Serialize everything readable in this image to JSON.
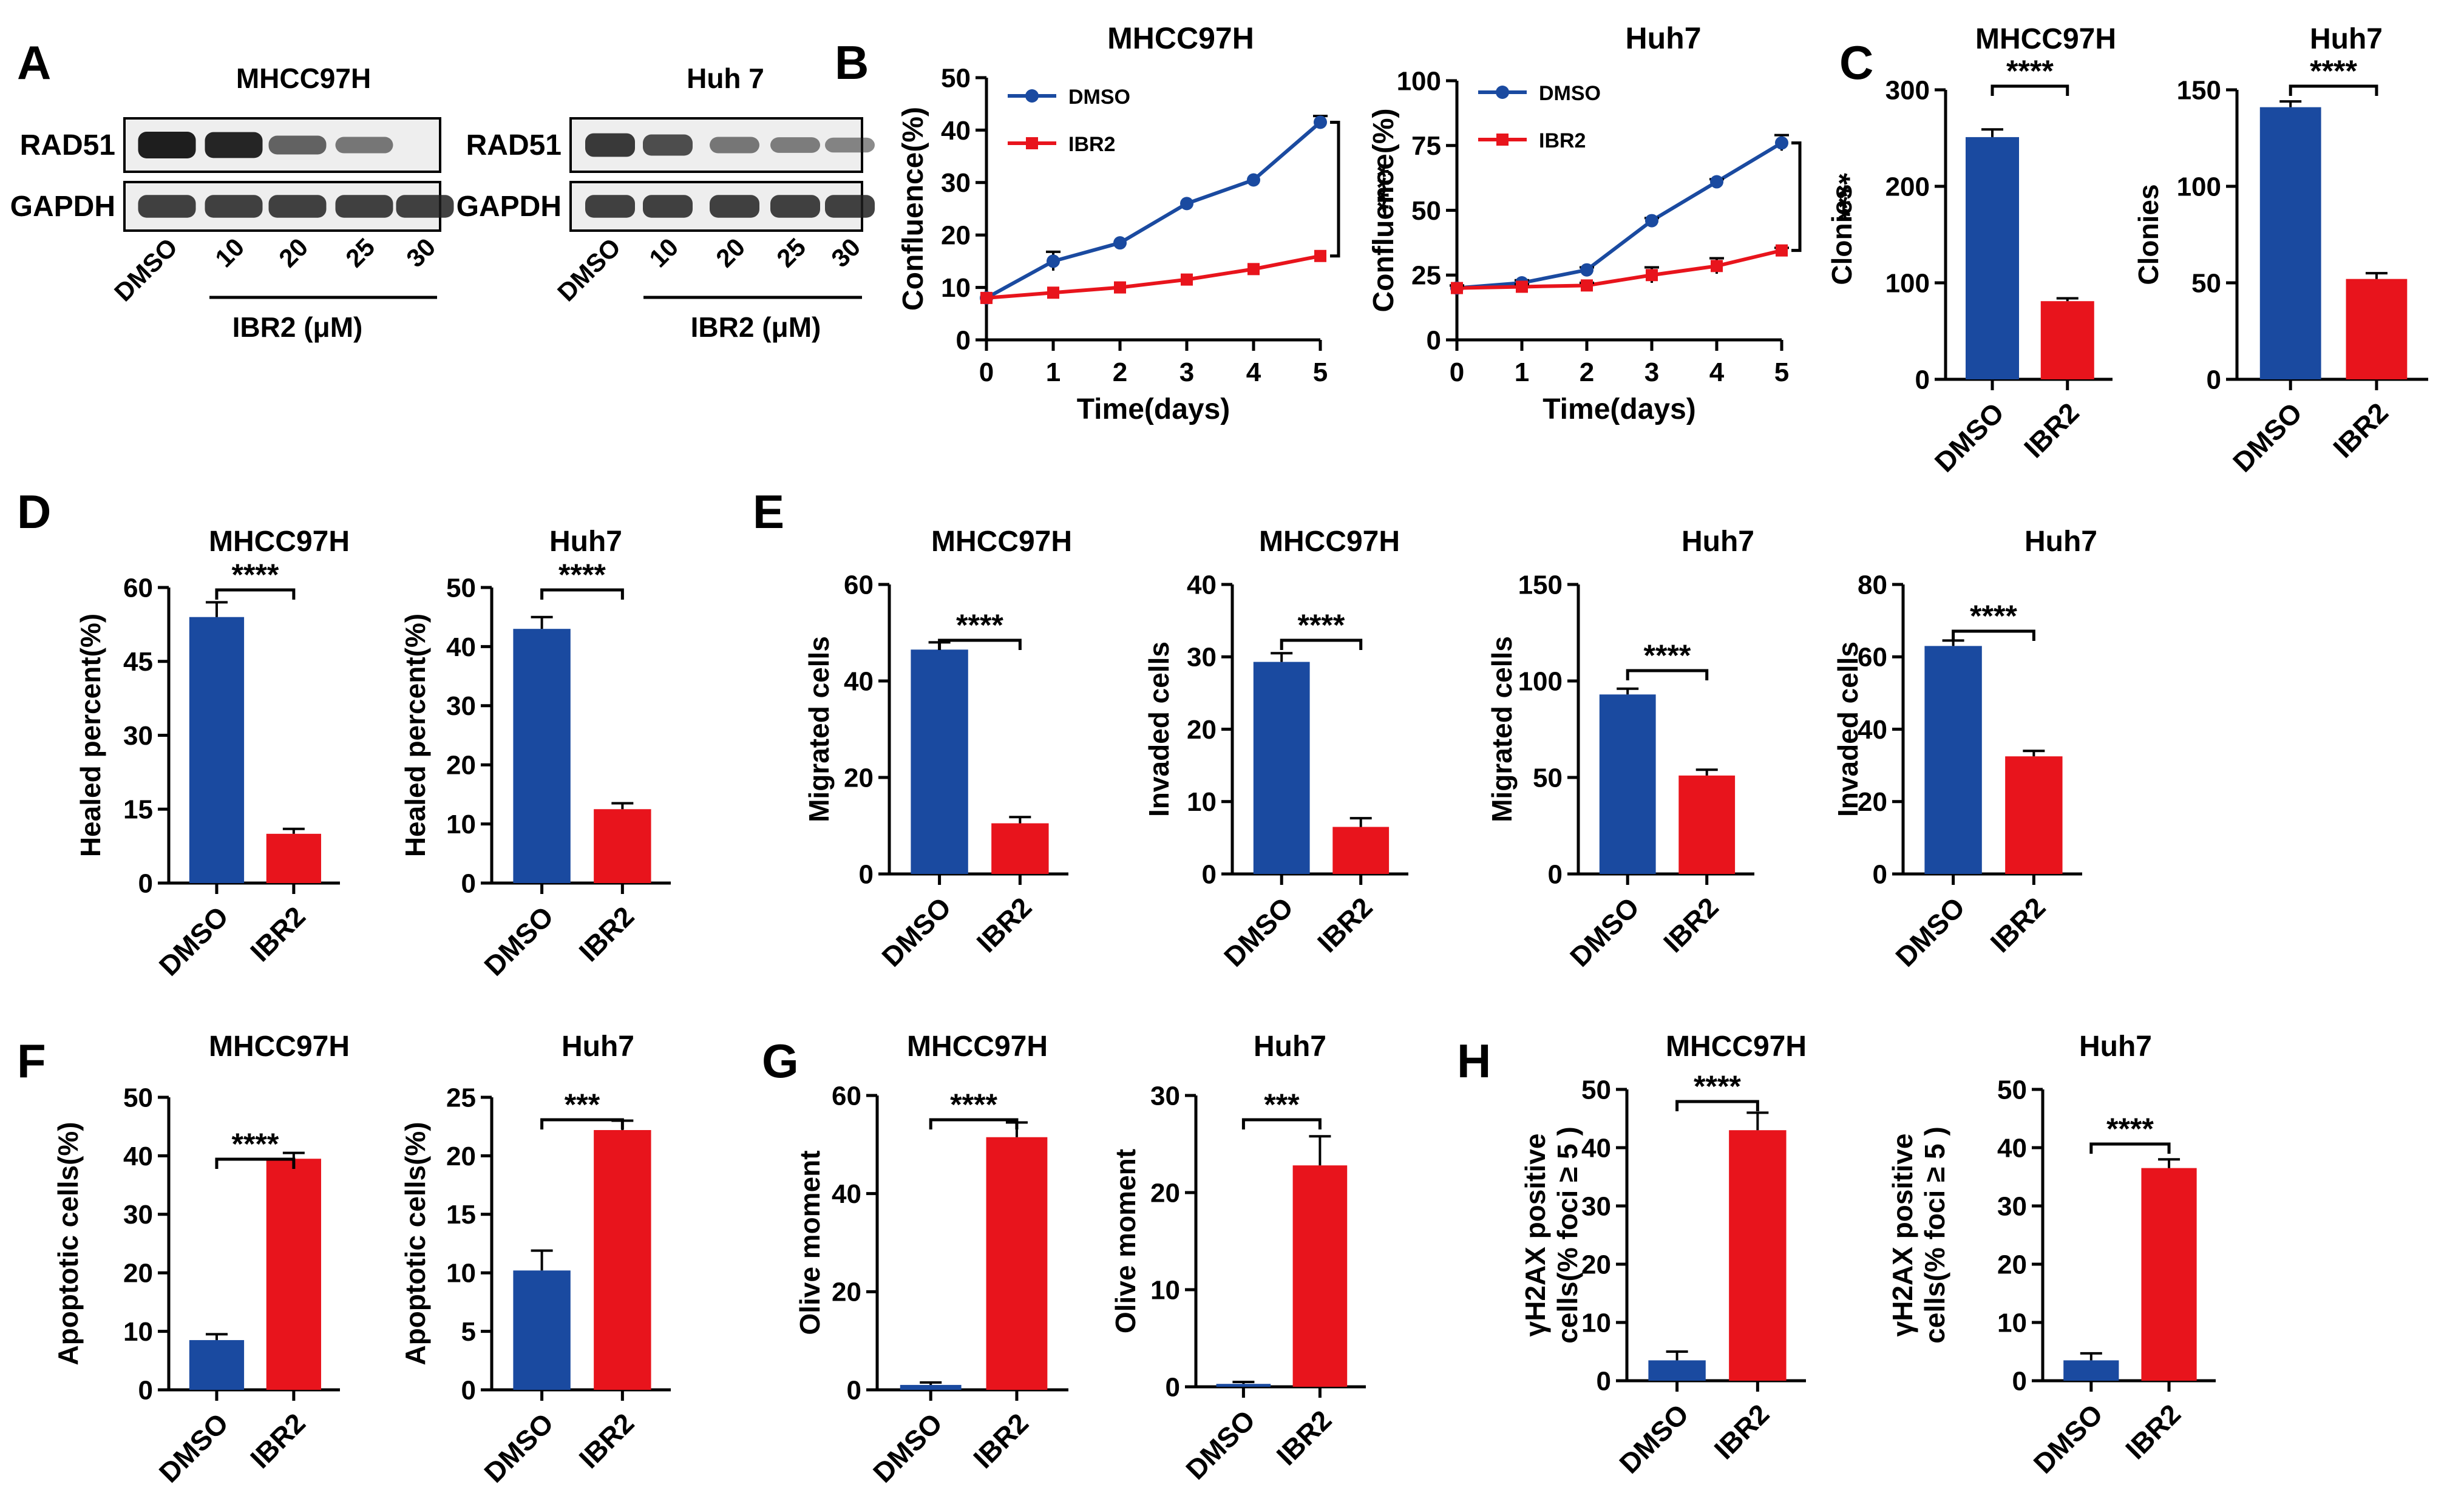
{
  "colors": {
    "dmso": "#1a4aa0",
    "ibr2": "#e8141c",
    "axis": "#000000",
    "band": "#1e1e1e"
  },
  "panel_letters": [
    "A",
    "B",
    "C",
    "D",
    "E",
    "F",
    "G",
    "H"
  ],
  "blots": [
    {
      "title": "MHCC97H",
      "proteins": [
        "RAD51",
        "GAPDH"
      ],
      "lanes": [
        "DMSO",
        "10",
        "20",
        "25",
        "30"
      ],
      "treatment_label": "IBR2 (μM)",
      "rad51_intensity": [
        1.0,
        0.95,
        0.5,
        0.35,
        0.0
      ],
      "gapdh_intensity": [
        0.75,
        0.75,
        0.75,
        0.75,
        0.75
      ]
    },
    {
      "title": "Huh 7",
      "proteins": [
        "RAD51",
        "GAPDH"
      ],
      "lanes": [
        "DMSO",
        "10",
        "20",
        "25",
        "30"
      ],
      "treatment_label": "IBR2 (μM)",
      "rad51_intensity": [
        0.8,
        0.65,
        0.35,
        0.3,
        0.25
      ],
      "gapdh_intensity": [
        0.75,
        0.75,
        0.75,
        0.75,
        0.75
      ]
    }
  ],
  "chart_data": [
    {
      "panel": "B",
      "type": "line",
      "title": "MHCC97H",
      "xlabel": "Time(days)",
      "ylabel": "Confluence(%)",
      "x": [
        0,
        1,
        2,
        3,
        4,
        5
      ],
      "xlim": [
        0,
        5
      ],
      "ylim": [
        0,
        50
      ],
      "yticks": [
        0,
        10,
        20,
        30,
        40,
        50
      ],
      "series": [
        {
          "name": "DMSO",
          "values": [
            8,
            15,
            18.5,
            26,
            30.5,
            41.5
          ],
          "err": [
            0.5,
            1.8,
            0.5,
            0.5,
            0.5,
            1.2
          ]
        },
        {
          "name": "IBR2",
          "values": [
            8,
            9,
            10,
            11.5,
            13.5,
            16
          ],
          "err": [
            0.3,
            0.5,
            0.5,
            0.5,
            0.5,
            0.5
          ]
        }
      ],
      "significance": "****"
    },
    {
      "panel": "B",
      "type": "line",
      "title": "Huh7",
      "xlabel": "Time(days)",
      "ylabel": "Confluence(%)",
      "x": [
        0,
        1,
        2,
        3,
        4,
        5
      ],
      "xlim": [
        0,
        5
      ],
      "ylim": [
        0,
        100
      ],
      "yticks": [
        0,
        25,
        50,
        75,
        100
      ],
      "series": [
        {
          "name": "DMSO",
          "values": [
            20,
            22,
            27,
            46,
            61,
            76
          ],
          "err": [
            1,
            1,
            1,
            1,
            1,
            3
          ]
        },
        {
          "name": "IBR2",
          "values": [
            20,
            20.5,
            21,
            25,
            28.5,
            34.5
          ],
          "err": [
            1,
            1,
            1,
            3,
            3,
            1
          ]
        }
      ],
      "significance": "****"
    },
    {
      "panel": "C",
      "type": "bar",
      "title": "MHCC97H",
      "ylabel": "Clonies",
      "categories": [
        "DMSO",
        "IBR2"
      ],
      "values": [
        251,
        81
      ],
      "err": [
        8,
        3
      ],
      "ylim": [
        0,
        300
      ],
      "yticks": [
        0,
        100,
        200,
        300
      ],
      "significance": "****"
    },
    {
      "panel": "C",
      "type": "bar",
      "title": "Huh7",
      "ylabel": "Clonies",
      "categories": [
        "DMSO",
        "IBR2"
      ],
      "values": [
        141,
        52
      ],
      "err": [
        3,
        3
      ],
      "ylim": [
        0,
        150
      ],
      "yticks": [
        0,
        50,
        100,
        150
      ],
      "significance": "****"
    },
    {
      "panel": "D",
      "type": "bar",
      "title": "MHCC97H",
      "ylabel": "Healed percent(%)",
      "categories": [
        "DMSO",
        "IBR2"
      ],
      "values": [
        54,
        10
      ],
      "err": [
        3,
        1
      ],
      "ylim": [
        0,
        60
      ],
      "yticks": [
        0,
        15,
        30,
        45,
        60
      ],
      "significance": "****"
    },
    {
      "panel": "D",
      "type": "bar",
      "title": "Huh7",
      "ylabel": "Healed percent(%)",
      "categories": [
        "DMSO",
        "IBR2"
      ],
      "values": [
        43,
        12.5
      ],
      "err": [
        2,
        1
      ],
      "ylim": [
        0,
        50
      ],
      "yticks": [
        0,
        10,
        20,
        30,
        40,
        50
      ],
      "significance": "****"
    },
    {
      "panel": "E",
      "type": "bar",
      "title": "MHCC97H",
      "ylabel": "Migrated cells",
      "categories": [
        "DMSO",
        "IBR2"
      ],
      "values": [
        46.5,
        10.5
      ],
      "err": [
        1.5,
        1.3
      ],
      "ylim": [
        0,
        60
      ],
      "yticks": [
        0,
        20,
        40,
        60
      ],
      "significance": "****"
    },
    {
      "panel": "E",
      "type": "bar",
      "title": "MHCC97H",
      "ylabel": "Invaded cells",
      "categories": [
        "DMSO",
        "IBR2"
      ],
      "values": [
        29.3,
        6.5
      ],
      "err": [
        1.2,
        1.2
      ],
      "ylim": [
        0,
        40
      ],
      "yticks": [
        0,
        10,
        20,
        30,
        40
      ],
      "significance": "****"
    },
    {
      "panel": "E",
      "type": "bar",
      "title": "Huh7",
      "ylabel": "Migrated cells",
      "categories": [
        "DMSO",
        "IBR2"
      ],
      "values": [
        93,
        51
      ],
      "err": [
        3,
        3
      ],
      "ylim": [
        0,
        150
      ],
      "yticks": [
        0,
        50,
        100,
        150
      ],
      "significance": "****"
    },
    {
      "panel": "E",
      "type": "bar",
      "title": "Huh7",
      "ylabel": "Invaded cells",
      "categories": [
        "DMSO",
        "IBR2"
      ],
      "values": [
        63,
        32.5
      ],
      "err": [
        1.5,
        1.5
      ],
      "ylim": [
        0,
        80
      ],
      "yticks": [
        0,
        20,
        40,
        60,
        80
      ],
      "significance": "****"
    },
    {
      "panel": "F",
      "type": "bar",
      "title": "MHCC97H",
      "ylabel": "Apoptotic cells(%)",
      "categories": [
        "DMSO",
        "IBR2"
      ],
      "values": [
        8.5,
        39.5
      ],
      "err": [
        1,
        1
      ],
      "ylim": [
        0,
        50
      ],
      "yticks": [
        0,
        10,
        20,
        30,
        40,
        50
      ],
      "significance": "****"
    },
    {
      "panel": "F",
      "type": "bar",
      "title": "Huh7",
      "ylabel": "Apoptotic cells(%)",
      "categories": [
        "DMSO",
        "IBR2"
      ],
      "values": [
        10.2,
        22.2
      ],
      "err": [
        1.7,
        0.8
      ],
      "ylim": [
        0,
        25
      ],
      "yticks": [
        0,
        5,
        10,
        15,
        20,
        25
      ],
      "significance": "***"
    },
    {
      "panel": "G",
      "type": "bar",
      "title": "MHCC97H",
      "ylabel": "Olive moment",
      "categories": [
        "DMSO",
        "IBR2"
      ],
      "values": [
        1,
        51.5
      ],
      "err": [
        0.5,
        3
      ],
      "ylim": [
        0,
        60
      ],
      "yticks": [
        0,
        20,
        40,
        60
      ],
      "significance": "****"
    },
    {
      "panel": "G",
      "type": "bar",
      "title": "Huh7",
      "ylabel": "Olive moment",
      "categories": [
        "DMSO",
        "IBR2"
      ],
      "values": [
        0.3,
        22.8
      ],
      "err": [
        0.2,
        3
      ],
      "ylim": [
        0,
        30
      ],
      "yticks": [
        0,
        10,
        20,
        30
      ],
      "significance": "***"
    },
    {
      "panel": "H",
      "type": "bar",
      "title": "MHCC97H",
      "ylabel": [
        "γH2AX positive",
        "cells(% foci ≥ 5 )"
      ],
      "categories": [
        "DMSO",
        "IBR2"
      ],
      "values": [
        3.5,
        43
      ],
      "err": [
        1.5,
        3
      ],
      "ylim": [
        0,
        50
      ],
      "yticks": [
        0,
        10,
        20,
        30,
        40,
        50
      ],
      "significance": "****"
    },
    {
      "panel": "H",
      "type": "bar",
      "title": "Huh7",
      "ylabel": [
        "γH2AX positive",
        "cells(% foci ≥ 5 )"
      ],
      "categories": [
        "DMSO",
        "IBR2"
      ],
      "values": [
        3.5,
        36.5
      ],
      "err": [
        1.2,
        1.5
      ],
      "ylim": [
        0,
        50
      ],
      "yticks": [
        0,
        10,
        20,
        30,
        40,
        50
      ],
      "significance": "****"
    }
  ]
}
